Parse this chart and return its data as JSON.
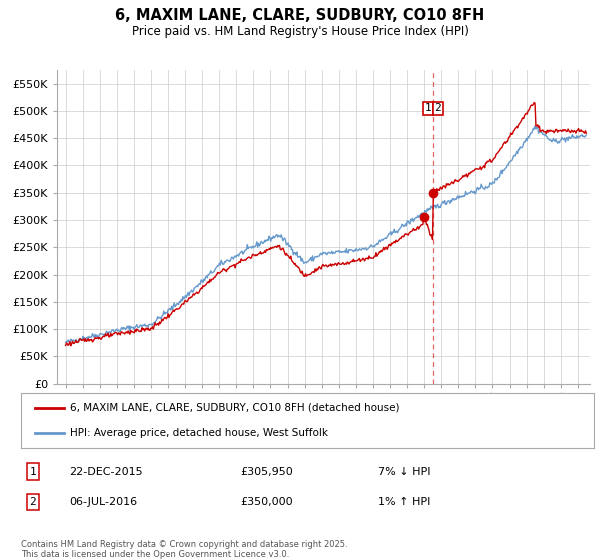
{
  "title": "6, MAXIM LANE, CLARE, SUDBURY, CO10 8FH",
  "subtitle": "Price paid vs. HM Land Registry's House Price Index (HPI)",
  "legend_line1": "6, MAXIM LANE, CLARE, SUDBURY, CO10 8FH (detached house)",
  "legend_line2": "HPI: Average price, detached house, West Suffolk",
  "annotation1_label": "1",
  "annotation1_date": "22-DEC-2015",
  "annotation1_price": "£305,950",
  "annotation1_hpi": "7% ↓ HPI",
  "annotation2_label": "2",
  "annotation2_date": "06-JUL-2016",
  "annotation2_price": "£350,000",
  "annotation2_hpi": "1% ↑ HPI",
  "copyright": "Contains HM Land Registry data © Crown copyright and database right 2025.\nThis data is licensed under the Open Government Licence v3.0.",
  "red_line_color": "#cc0000",
  "blue_line_color": "#6699cc",
  "marker_color1": "#cc0000",
  "marker_color2": "#cc0000",
  "vline_color": "#cc0000",
  "grid_color": "#cccccc",
  "background_color": "#ffffff",
  "ylim": [
    0,
    575000
  ],
  "yticks": [
    0,
    50000,
    100000,
    150000,
    200000,
    250000,
    300000,
    350000,
    400000,
    450000,
    500000,
    550000
  ],
  "ytick_labels": [
    "£0",
    "£50K",
    "£100K",
    "£150K",
    "£200K",
    "£250K",
    "£300K",
    "£350K",
    "£400K",
    "£450K",
    "£500K",
    "£550K"
  ],
  "xlim_start": 1994.5,
  "xlim_end": 2025.7,
  "sale1_x": 2015.97,
  "sale1_y": 305950,
  "sale2_x": 2016.51,
  "sale2_y": 350000,
  "vline_x": 2016.51
}
